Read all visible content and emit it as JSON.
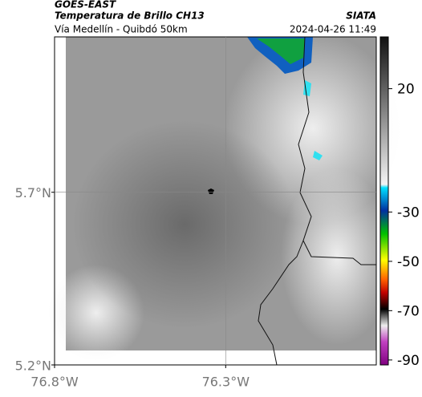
{
  "header": {
    "title": "GOES-EAST",
    "subtitle": "Temperatura de Brillo CH13",
    "source": "SIATA",
    "location": "Vía Medellín - Quibdó 50km",
    "datetime": "2024-04-26 11:49"
  },
  "map": {
    "latlim": [
      5.2,
      6.15
    ],
    "lonlim": [
      -76.8,
      -75.86
    ],
    "lat_ticks": [
      {
        "value": 5.7,
        "label": "5.7°N"
      },
      {
        "value": 5.2,
        "label": "5.2°N"
      }
    ],
    "lon_ticks": [
      {
        "value": -76.8,
        "label": "76.8°W"
      },
      {
        "value": -76.3,
        "label": "76.3°W"
      }
    ]
  },
  "colorbar": {
    "lim": [
      -92,
      41
    ],
    "ticks": [
      20,
      -30,
      -50,
      -70,
      -90
    ]
  }
}
